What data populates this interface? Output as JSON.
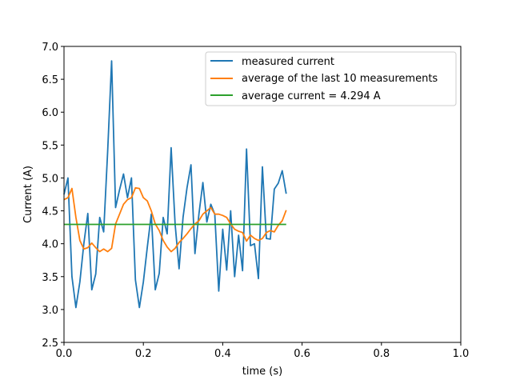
{
  "chart_data": {
    "type": "line",
    "xlabel": "time (s)",
    "ylabel": "Current (A)",
    "xlim": [
      0.0,
      1.0
    ],
    "ylim": [
      2.5,
      7.0
    ],
    "xticks": [
      0.0,
      0.2,
      0.4,
      0.6,
      0.8,
      1.0
    ],
    "xtick_labels": [
      "0.0",
      "0.2",
      "0.4",
      "0.6",
      "0.8",
      "1.0"
    ],
    "yticks": [
      2.5,
      3.0,
      3.5,
      4.0,
      4.5,
      5.0,
      5.5,
      6.0,
      6.5,
      7.0
    ],
    "ytick_labels": [
      "2.5",
      "3.0",
      "3.5",
      "4.0",
      "4.5",
      "5.0",
      "5.5",
      "6.0",
      "6.5",
      "7.0"
    ],
    "legend_position": "top-right",
    "grid": false,
    "series": [
      {
        "name": "measured current",
        "color": "#1f77b4",
        "x": [
          0.0,
          0.01,
          0.02,
          0.03,
          0.04,
          0.05,
          0.06,
          0.07,
          0.08,
          0.09,
          0.1,
          0.11,
          0.12,
          0.13,
          0.14,
          0.15,
          0.16,
          0.17,
          0.18,
          0.19,
          0.2,
          0.21,
          0.22,
          0.23,
          0.24,
          0.25,
          0.26,
          0.27,
          0.28,
          0.29,
          0.3,
          0.31,
          0.32,
          0.33,
          0.34,
          0.35,
          0.36,
          0.37,
          0.38,
          0.39,
          0.4,
          0.41,
          0.42,
          0.43,
          0.44,
          0.45,
          0.46,
          0.47,
          0.48,
          0.49,
          0.5,
          0.51,
          0.52,
          0.53,
          0.54,
          0.55,
          0.56
        ],
        "y": [
          4.75,
          5.0,
          3.5,
          3.03,
          3.42,
          4.0,
          4.46,
          3.3,
          3.54,
          4.4,
          4.18,
          5.4,
          6.78,
          4.55,
          4.82,
          5.06,
          4.7,
          5.0,
          3.45,
          3.03,
          3.42,
          3.95,
          4.45,
          3.3,
          3.55,
          4.4,
          4.15,
          5.46,
          4.3,
          3.62,
          4.4,
          4.85,
          5.2,
          3.85,
          4.45,
          4.93,
          4.33,
          4.6,
          4.45,
          3.28,
          4.22,
          3.6,
          4.5,
          3.5,
          4.13,
          3.59,
          5.44,
          3.97,
          4.0,
          3.47,
          5.17,
          4.08,
          4.07,
          4.83,
          4.92,
          5.11,
          4.76
        ]
      },
      {
        "name": "average of the last 10 measurements",
        "color": "#ff7f0e",
        "x": [
          0.0,
          0.01,
          0.02,
          0.03,
          0.04,
          0.05,
          0.06,
          0.07,
          0.08,
          0.09,
          0.1,
          0.11,
          0.12,
          0.13,
          0.14,
          0.15,
          0.16,
          0.17,
          0.18,
          0.19,
          0.2,
          0.21,
          0.22,
          0.23,
          0.24,
          0.25,
          0.26,
          0.27,
          0.28,
          0.29,
          0.3,
          0.31,
          0.32,
          0.33,
          0.34,
          0.35,
          0.36,
          0.37,
          0.38,
          0.39,
          0.4,
          0.41,
          0.42,
          0.43,
          0.44,
          0.45,
          0.46,
          0.47,
          0.48,
          0.49,
          0.5,
          0.51,
          0.52,
          0.53,
          0.54,
          0.55,
          0.56
        ],
        "y": [
          4.67,
          4.7,
          4.84,
          4.4,
          4.05,
          3.92,
          3.94,
          4.01,
          3.94,
          3.88,
          3.92,
          3.88,
          3.93,
          4.3,
          4.45,
          4.6,
          4.67,
          4.7,
          4.85,
          4.84,
          4.7,
          4.65,
          4.5,
          4.3,
          4.2,
          4.05,
          3.95,
          3.88,
          3.93,
          4.02,
          4.08,
          4.15,
          4.23,
          4.3,
          4.35,
          4.45,
          4.5,
          4.55,
          4.45,
          4.45,
          4.43,
          4.4,
          4.3,
          4.22,
          4.19,
          4.17,
          4.04,
          4.13,
          4.08,
          4.05,
          4.08,
          4.17,
          4.2,
          4.18,
          4.28,
          4.35,
          4.51
        ]
      },
      {
        "name": "average current = 4.294 A",
        "color": "#2ca02c",
        "x": [
          0.0,
          0.56
        ],
        "y": [
          4.294,
          4.294
        ]
      }
    ]
  }
}
